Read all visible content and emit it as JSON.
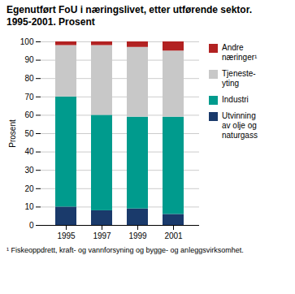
{
  "chart_data": {
    "type": "bar",
    "stacked": true,
    "title": "Egenutført FoU i næringslivet, etter utførende sektor.",
    "subtitle": "1995-2001. Prosent",
    "caption": "¹ Fiskeoppdrett, kraft- og vannforsyning og bygge- og anleggsvirksomhet.",
    "ylabel": "Prosent",
    "categories": [
      "1995",
      "1997",
      "1999",
      "2001"
    ],
    "series": [
      {
        "name": "Utvinning\nav olje og\nnaturgass",
        "color": "#1a3a6b",
        "values": [
          10,
          8,
          9,
          6
        ]
      },
      {
        "name": "Industri",
        "color": "#009b8d",
        "values": [
          60,
          52,
          50,
          53
        ]
      },
      {
        "name": "Tjeneste-\nyting",
        "color": "#c8c8c8",
        "values": [
          28,
          38,
          38,
          36
        ]
      },
      {
        "name": "Andre\nnæringer¹",
        "color": "#b22222",
        "values": [
          2,
          2,
          3,
          5
        ]
      }
    ],
    "ylim": [
      0,
      100
    ],
    "yticks": [
      0,
      10,
      20,
      30,
      40,
      50,
      60,
      70,
      80,
      90,
      100
    ],
    "grid": true,
    "legend": "right"
  }
}
